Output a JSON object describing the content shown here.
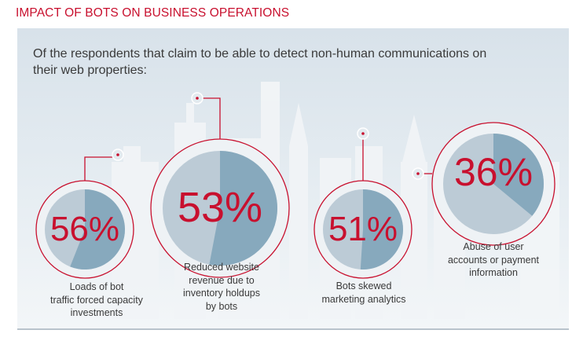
{
  "header": {
    "title": "IMPACT OF BOTS ON BUSINESS OPERATIONS"
  },
  "intro": {
    "text": "Of the respondents that claim to be able to detect non-human communications on their web properties:"
  },
  "colors": {
    "accent": "#c8102e",
    "panel_top": "#d8e2ea",
    "pie_light": "#bccbd6",
    "pie_dark": "#87a9bd",
    "skyline": "#f2f5f7"
  },
  "chart_data": {
    "type": "pie",
    "unit": "%",
    "items": [
      {
        "value": 56,
        "label": "56%",
        "caption": "Loads of bot\ntraffic forced capacity\ninvestments"
      },
      {
        "value": 53,
        "label": "53%",
        "caption": "Reduced website\nrevenue due to\ninventory holdups\nby bots"
      },
      {
        "value": 51,
        "label": "51%",
        "caption": "Bots skewed\nmarketing analytics"
      },
      {
        "value": 36,
        "label": "36%",
        "caption": "Abuse of user\naccounts or payment\ninformation"
      }
    ]
  }
}
